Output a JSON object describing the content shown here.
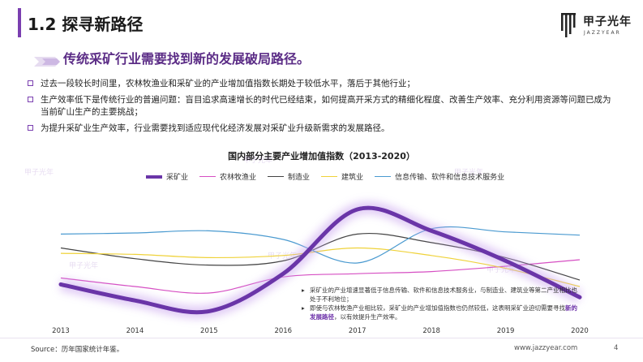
{
  "header": {
    "title": "1.2 探寻新路径"
  },
  "brand": {
    "logo_text": "甲子光年",
    "logo_sub": "JAZZYEAR",
    "watermark": "甲子光年"
  },
  "headline": "传统采矿行业需要找到新的发展破局路径。",
  "bullets": [
    "过去一段较长时间里，农林牧渔业和采矿业的产业增加值指数长期处于较低水平，落后于其他行业；",
    "生产效率低下是传统行业的普遍问题：盲目追求高速增长的时代已经结束，如何提高开采方式的精细化程度、改善生产效率、充分利用资源等问题已成为当前矿山生产的主要挑战；",
    "为提升采矿业生产效率，行业需要找到适应现代化经济发展对采矿业升级新需求的发展路径。"
  ],
  "chart_data": {
    "type": "line",
    "title": "国内部分主要产业增加值指数（2013-2020）",
    "x": [
      "2013",
      "2014",
      "2015",
      "2016",
      "2017",
      "2018",
      "2019",
      "2020"
    ],
    "y_unit": "relative index (no axis ticks shown)",
    "ylim": [
      0,
      100
    ],
    "grid": false,
    "legend_position": "top",
    "series": [
      {
        "name": "采矿业",
        "color": "#6a35a8",
        "values": [
          30,
          15,
          5,
          40,
          100,
          80,
          52,
          18
        ]
      },
      {
        "name": "农林牧渔业",
        "color": "#d64fc3",
        "values": [
          36,
          28,
          22,
          37,
          40,
          42,
          47,
          53
        ]
      },
      {
        "name": "制造业",
        "color": "#444444",
        "values": [
          64,
          54,
          48,
          52,
          77,
          69,
          55,
          34
        ]
      },
      {
        "name": "建筑业",
        "color": "#efd23a",
        "values": [
          59,
          58,
          55,
          57,
          64,
          57,
          45,
          28
        ]
      },
      {
        "name": "信息传输、软件和信息技术服务业",
        "color": "#4a9ad0",
        "values": [
          77,
          78,
          80,
          72,
          50,
          82,
          79,
          76
        ]
      }
    ]
  },
  "notes": {
    "n1": "采矿业的产业增速显著低于信息传输、软件和信息技术服务业，与制造业、建筑业等第二产业相比也处于不利地位；",
    "n2a": "即使与农林牧渔产业相比较，采矿业的产业增加值指数也仍然较低，这表明采矿业迫切需要寻找",
    "n2b": "新的发展路径",
    "n2c": "，以有效提升生产效率。"
  },
  "footer": {
    "source": "Source：历年国家统计年鉴。",
    "site": "www.jazzyear.com",
    "page": "4"
  }
}
